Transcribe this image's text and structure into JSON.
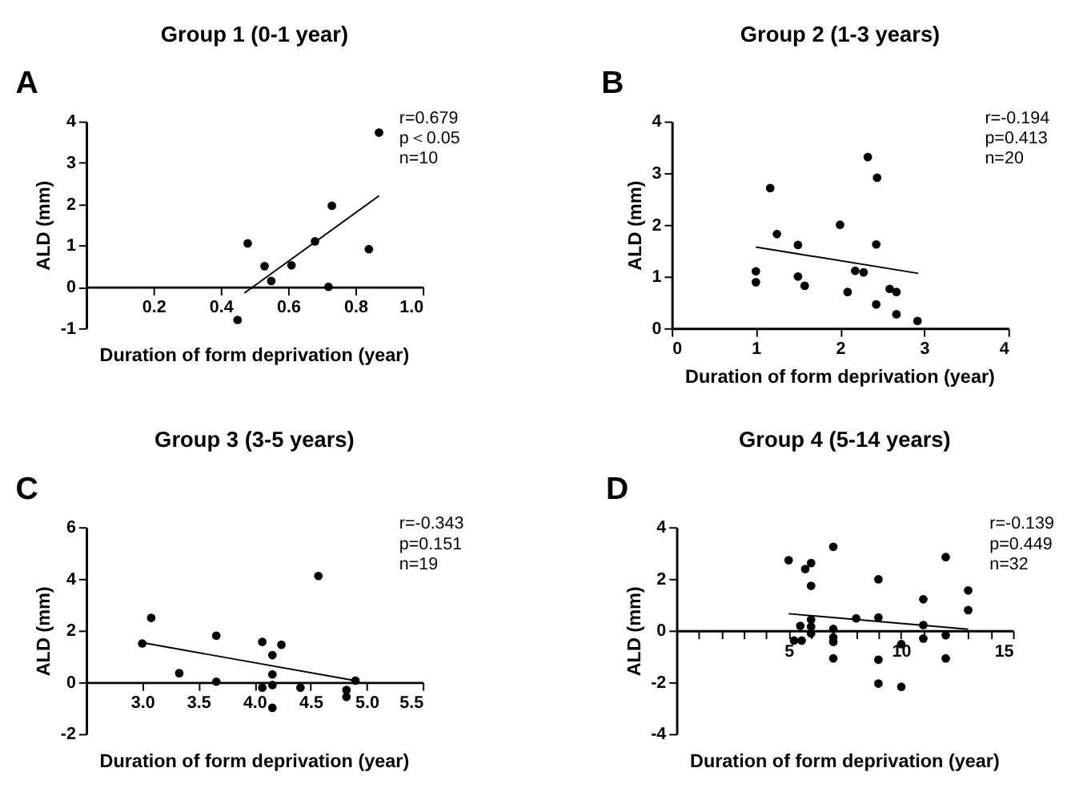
{
  "chart_data": [
    {
      "type": "scatter",
      "title": "Group 1 (0-1 year)",
      "xlabel": "Duration of form deprivation (year)",
      "ylabel": "ALD (mm)",
      "annotations": [
        "A",
        "r=0.679",
        "p＜0.05",
        "n=10"
      ],
      "grid": false,
      "xlim": [
        0,
        1
      ],
      "xticks": [
        0.2,
        0.4,
        0.6,
        0.8,
        {
          "value": 1,
          "label": "1.0"
        }
      ],
      "ylim": [
        -1,
        4
      ],
      "yticks": [
        -1,
        0,
        1,
        2,
        3,
        4
      ],
      "series": [
        {
          "type": "scatter",
          "marker": "circle",
          "color": "#000000",
          "x": [
            0.45,
            0.48,
            0.53,
            0.55,
            0.61,
            0.68,
            0.73,
            0.72,
            0.84,
            0.87
          ],
          "values": [
            -0.8,
            1.05,
            0.5,
            0.14,
            0.52,
            1.1,
            1.96,
            0.0,
            0.91,
            3.73
          ]
        },
        {
          "type": "line",
          "color": "#000000",
          "x": [
            0.47,
            0.87
          ],
          "values": [
            -0.15,
            2.2
          ]
        }
      ]
    },
    {
      "type": "scatter",
      "title": "Group 2 (1-3 years)",
      "xlabel": "Duration of form deprivation (year)",
      "ylabel": "ALD (mm)",
      "annotations": [
        "B",
        "r=-0.194",
        "p=0.413",
        "n=20"
      ],
      "grid": false,
      "xlim": [
        0,
        4
      ],
      "xticks": [
        0,
        1,
        2,
        3,
        4
      ],
      "ylim": [
        0,
        4
      ],
      "yticks": [
        0,
        1,
        2,
        3,
        4
      ],
      "series": [
        {
          "type": "scatter",
          "marker": "circle",
          "color": "#000000",
          "x": [
            1.0,
            1.0,
            1.17,
            1.25,
            1.5,
            1.5,
            1.58,
            2.0,
            2.09,
            2.33,
            2.44,
            2.43,
            2.18,
            2.28,
            2.43,
            2.59,
            2.67,
            2.67,
            2.92
          ],
          "values": [
            1.1,
            0.89,
            2.71,
            1.82,
            1.61,
            1.0,
            0.82,
            2.0,
            0.7,
            3.31,
            2.91,
            1.62,
            1.11,
            1.08,
            0.46,
            0.76,
            0.7,
            0.27,
            0.14
          ]
        },
        {
          "type": "line",
          "color": "#000000",
          "x": [
            1.0,
            2.93
          ],
          "values": [
            1.57,
            1.06
          ]
        }
      ]
    },
    {
      "type": "scatter",
      "title": "Group 3 (3-5 years)",
      "xlabel": "Duration of form deprivation (year)",
      "ylabel": "ALD (mm)",
      "annotations": [
        "C",
        "r=-0.343",
        "p=0.151",
        "n=19"
      ],
      "grid": false,
      "xlim": [
        2.5,
        5.5
      ],
      "xticks": [
        {
          "value": 3,
          "label": "3.0"
        },
        3.5,
        {
          "value": 4,
          "label": "4.0"
        },
        4.5,
        {
          "value": 5,
          "label": "5.0"
        },
        5.5
      ],
      "ylim": [
        -2,
        6
      ],
      "yticks": [
        -2,
        0,
        2,
        4,
        6
      ],
      "series": [
        {
          "type": "scatter",
          "marker": "circle",
          "color": "#000000",
          "x": [
            3.0,
            3.08,
            3.33,
            3.66,
            3.66,
            4.07,
            4.07,
            4.16,
            4.16,
            4.16,
            4.16,
            4.24,
            4.41,
            4.57,
            4.82,
            4.82,
            4.9
          ],
          "values": [
            1.5,
            2.49,
            0.35,
            1.8,
            0.02,
            1.56,
            -0.21,
            1.05,
            0.3,
            -0.11,
            -0.99,
            1.45,
            -0.21,
            4.11,
            -0.3,
            -0.57,
            0.06
          ]
        },
        {
          "type": "line",
          "color": "#000000",
          "x": [
            3.0,
            4.9
          ],
          "values": [
            1.53,
            0.06
          ]
        }
      ]
    },
    {
      "type": "scatter",
      "title": "Group 4 (5-14 years)",
      "xlabel": "Duration of form deprivation (year)",
      "ylabel": "ALD (mm)",
      "annotations": [
        "D",
        "r=-0.139",
        "p=0.449",
        "n=32"
      ],
      "grid": false,
      "xlim": [
        0,
        15
      ],
      "xticks": [
        {
          "value": 0,
          "label": null
        },
        {
          "value": 1,
          "label": null
        },
        {
          "value": 2,
          "label": null
        },
        {
          "value": 3,
          "label": null
        },
        {
          "value": 4,
          "label": null
        },
        5,
        {
          "value": 6,
          "label": null
        },
        {
          "value": 7,
          "label": null
        },
        {
          "value": 8,
          "label": null
        },
        {
          "value": 9,
          "label": null
        },
        10,
        {
          "value": 11,
          "label": null
        },
        {
          "value": 12,
          "label": null
        },
        {
          "value": 13,
          "label": null
        },
        {
          "value": 14,
          "label": null
        },
        15
      ],
      "ylim": [
        -4,
        4
      ],
      "yticks": [
        -4,
        -2,
        0,
        2,
        4
      ],
      "series": [
        {
          "type": "scatter",
          "marker": "circle",
          "color": "#000000",
          "x": [
            5.0,
            5.24,
            5.52,
            5.58,
            5.74,
            6.0,
            6.0,
            6.0,
            6.0,
            6.0,
            6.99,
            6.99,
            6.99,
            6.99,
            6.99,
            8.01,
            9.0,
            9.0,
            9.0,
            9.0,
            10.02,
            10.02,
            11.0,
            11.0,
            11.0,
            12.0,
            12.0,
            12.0,
            13.0,
            13.0
          ],
          "values": [
            2.72,
            -0.39,
            0.18,
            -0.39,
            2.38,
            2.61,
            1.73,
            0.42,
            0.15,
            -0.11,
            3.24,
            0.06,
            -0.27,
            -0.44,
            -1.08,
            0.47,
            1.98,
            0.5,
            -1.13,
            -2.05,
            -0.53,
            -2.18,
            1.21,
            0.21,
            -0.31,
            2.84,
            -0.18,
            -1.08,
            1.55,
            0.79
          ]
        },
        {
          "type": "line",
          "color": "#000000",
          "x": [
            5.0,
            13.0
          ],
          "values": [
            0.65,
            0.05
          ]
        }
      ]
    }
  ]
}
